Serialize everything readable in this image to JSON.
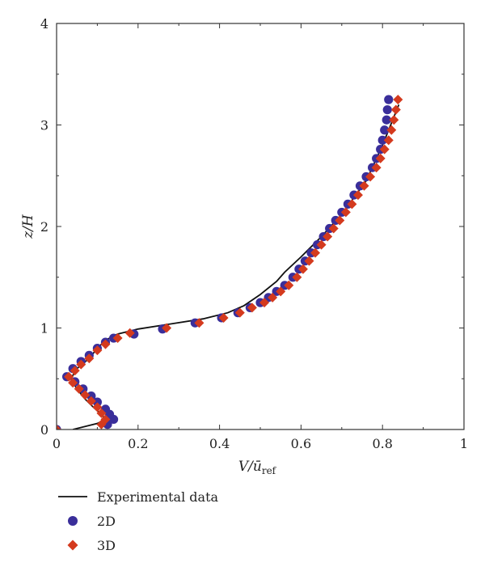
{
  "chart_data": {
    "type": "scatter",
    "title": "",
    "xlabel": "V/ū",
    "xlabel_subscript": "ref",
    "ylabel": "z/H",
    "xlim": [
      0,
      1
    ],
    "ylim": [
      0,
      4
    ],
    "x_ticks": [
      0,
      0.2,
      0.4,
      0.6,
      0.8,
      1
    ],
    "x_tick_labels": [
      "0",
      "0.2",
      "0.4",
      "0.6",
      "0.8",
      "1"
    ],
    "y_ticks": [
      0,
      1,
      2,
      3,
      4
    ],
    "y_tick_labels": [
      "0",
      "1",
      "2",
      "3",
      "4"
    ],
    "grid": false,
    "legend_position": "below",
    "series": [
      {
        "name": "Experimental data",
        "kind": "line",
        "color": "#111111",
        "points": [
          [
            0.04,
            0.0
          ],
          [
            0.07,
            0.03
          ],
          [
            0.1,
            0.06
          ],
          [
            0.12,
            0.1
          ],
          [
            0.11,
            0.15
          ],
          [
            0.09,
            0.22
          ],
          [
            0.07,
            0.3
          ],
          [
            0.05,
            0.4
          ],
          [
            0.035,
            0.5
          ],
          [
            0.05,
            0.6
          ],
          [
            0.08,
            0.7
          ],
          [
            0.1,
            0.8
          ],
          [
            0.12,
            0.88
          ],
          [
            0.15,
            0.94
          ],
          [
            0.2,
            0.99
          ],
          [
            0.28,
            1.04
          ],
          [
            0.36,
            1.09
          ],
          [
            0.42,
            1.15
          ],
          [
            0.46,
            1.22
          ],
          [
            0.5,
            1.33
          ],
          [
            0.54,
            1.46
          ],
          [
            0.56,
            1.55
          ],
          [
            0.6,
            1.7
          ],
          [
            0.65,
            1.9
          ],
          [
            0.7,
            2.12
          ],
          [
            0.76,
            2.45
          ],
          [
            0.8,
            2.8
          ],
          [
            0.82,
            3.0
          ],
          [
            0.84,
            3.2
          ]
        ]
      },
      {
        "name": "2D",
        "kind": "circle",
        "color": "#3a2e9a",
        "points": [
          [
            0.0,
            0.0
          ],
          [
            0.125,
            0.05
          ],
          [
            0.14,
            0.1
          ],
          [
            0.13,
            0.15
          ],
          [
            0.12,
            0.2
          ],
          [
            0.1,
            0.27
          ],
          [
            0.085,
            0.33
          ],
          [
            0.065,
            0.4
          ],
          [
            0.045,
            0.47
          ],
          [
            0.025,
            0.52
          ],
          [
            0.04,
            0.6
          ],
          [
            0.06,
            0.67
          ],
          [
            0.08,
            0.73
          ],
          [
            0.1,
            0.8
          ],
          [
            0.12,
            0.86
          ],
          [
            0.14,
            0.9
          ],
          [
            0.19,
            0.94
          ],
          [
            0.26,
            0.99
          ],
          [
            0.34,
            1.05
          ],
          [
            0.405,
            1.1
          ],
          [
            0.445,
            1.15
          ],
          [
            0.475,
            1.2
          ],
          [
            0.5,
            1.25
          ],
          [
            0.52,
            1.3
          ],
          [
            0.54,
            1.36
          ],
          [
            0.56,
            1.42
          ],
          [
            0.58,
            1.5
          ],
          [
            0.595,
            1.58
          ],
          [
            0.61,
            1.66
          ],
          [
            0.625,
            1.74
          ],
          [
            0.64,
            1.82
          ],
          [
            0.655,
            1.9
          ],
          [
            0.67,
            1.98
          ],
          [
            0.685,
            2.06
          ],
          [
            0.7,
            2.14
          ],
          [
            0.715,
            2.22
          ],
          [
            0.73,
            2.31
          ],
          [
            0.745,
            2.4
          ],
          [
            0.76,
            2.49
          ],
          [
            0.775,
            2.58
          ],
          [
            0.785,
            2.67
          ],
          [
            0.795,
            2.76
          ],
          [
            0.8,
            2.85
          ],
          [
            0.805,
            2.95
          ],
          [
            0.81,
            3.05
          ],
          [
            0.812,
            3.15
          ],
          [
            0.815,
            3.25
          ]
        ]
      },
      {
        "name": "3D",
        "kind": "diamond",
        "color": "#d43a1e",
        "points": [
          [
            0.0,
            0.0
          ],
          [
            0.11,
            0.05
          ],
          [
            0.12,
            0.1
          ],
          [
            0.11,
            0.16
          ],
          [
            0.1,
            0.22
          ],
          [
            0.085,
            0.28
          ],
          [
            0.07,
            0.34
          ],
          [
            0.055,
            0.4
          ],
          [
            0.04,
            0.46
          ],
          [
            0.03,
            0.52
          ],
          [
            0.045,
            0.58
          ],
          [
            0.06,
            0.64
          ],
          [
            0.08,
            0.7
          ],
          [
            0.1,
            0.78
          ],
          [
            0.12,
            0.84
          ],
          [
            0.15,
            0.9
          ],
          [
            0.18,
            0.95
          ],
          [
            0.27,
            1.0
          ],
          [
            0.35,
            1.05
          ],
          [
            0.41,
            1.1
          ],
          [
            0.45,
            1.15
          ],
          [
            0.48,
            1.2
          ],
          [
            0.51,
            1.25
          ],
          [
            0.53,
            1.3
          ],
          [
            0.55,
            1.36
          ],
          [
            0.57,
            1.42
          ],
          [
            0.59,
            1.5
          ],
          [
            0.605,
            1.58
          ],
          [
            0.62,
            1.66
          ],
          [
            0.635,
            1.74
          ],
          [
            0.65,
            1.82
          ],
          [
            0.665,
            1.9
          ],
          [
            0.68,
            1.98
          ],
          [
            0.695,
            2.06
          ],
          [
            0.71,
            2.14
          ],
          [
            0.725,
            2.22
          ],
          [
            0.74,
            2.31
          ],
          [
            0.755,
            2.4
          ],
          [
            0.77,
            2.49
          ],
          [
            0.785,
            2.58
          ],
          [
            0.795,
            2.67
          ],
          [
            0.805,
            2.76
          ],
          [
            0.815,
            2.85
          ],
          [
            0.822,
            2.95
          ],
          [
            0.828,
            3.05
          ],
          [
            0.833,
            3.15
          ],
          [
            0.838,
            3.25
          ]
        ]
      }
    ]
  }
}
